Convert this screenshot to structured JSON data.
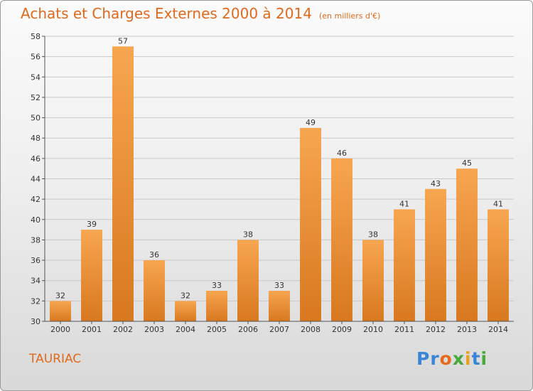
{
  "title": "Achats et Charges Externes 2000 à 2014",
  "subtitle": "(en milliers d'€)",
  "location": "TAURIAC",
  "logo": {
    "letters": [
      {
        "char": "P",
        "color": "#3a86d6"
      },
      {
        "char": "r",
        "color": "#3a86d6"
      },
      {
        "char": "o",
        "color": "#e86a1c"
      },
      {
        "char": "x",
        "color": "#47a93a"
      },
      {
        "char": "i",
        "color": "#e8a21c"
      },
      {
        "char": "t",
        "color": "#3a86d6"
      },
      {
        "char": "i",
        "color": "#47a93a"
      }
    ]
  },
  "colors": {
    "bar_light": "#f7a650",
    "bar_dark": "#d8781f",
    "title": "#e06a1c",
    "grid": "#c8c8c8"
  },
  "chart_data": {
    "type": "bar",
    "categories": [
      "2000",
      "2001",
      "2002",
      "2003",
      "2004",
      "2005",
      "2006",
      "2007",
      "2008",
      "2009",
      "2010",
      "2011",
      "2012",
      "2013",
      "2014"
    ],
    "values": [
      32,
      39,
      57,
      36,
      32,
      33,
      38,
      33,
      49,
      46,
      38,
      41,
      43,
      45,
      41
    ],
    "ylim": [
      30,
      58
    ],
    "yticks": [
      30,
      32,
      34,
      36,
      38,
      40,
      42,
      44,
      46,
      48,
      50,
      52,
      54,
      56,
      58
    ],
    "grid": true
  }
}
